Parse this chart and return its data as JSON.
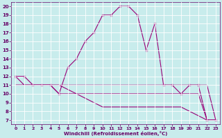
{
  "xlabel": "Windchill (Refroidissement éolien,°C)",
  "bg_color": "#c8ecec",
  "line_color": "#990077",
  "grid_color": "#ffffff",
  "xlim": [
    -0.5,
    23.5
  ],
  "ylim": [
    6.5,
    20.5
  ],
  "xticks": [
    0,
    1,
    2,
    3,
    4,
    5,
    6,
    7,
    8,
    9,
    10,
    11,
    12,
    13,
    14,
    15,
    16,
    17,
    18,
    19,
    20,
    21,
    22,
    23
  ],
  "yticks": [
    7,
    8,
    9,
    10,
    11,
    12,
    13,
    14,
    15,
    16,
    17,
    18,
    19,
    20
  ],
  "line1_x": [
    0,
    1,
    2,
    3,
    4,
    5,
    6,
    7,
    8,
    9,
    10,
    11,
    12,
    13,
    14,
    15,
    16,
    17,
    18,
    19,
    20,
    21,
    22,
    23
  ],
  "line1_y": [
    12,
    12,
    11,
    11,
    11,
    10,
    13,
    14,
    16,
    17,
    19,
    19,
    20,
    20,
    19,
    15,
    18,
    11,
    11,
    10,
    11,
    11,
    7,
    7
  ],
  "line2_x": [
    0,
    1,
    2,
    3,
    4,
    5,
    6,
    7,
    8,
    9,
    10,
    11,
    12,
    13,
    14,
    15,
    16,
    17,
    18,
    19,
    20,
    21,
    22,
    23
  ],
  "line2_y": [
    11,
    11,
    11,
    11,
    11,
    11,
    11,
    11,
    11,
    11,
    11,
    11,
    11,
    11,
    11,
    11,
    11,
    11,
    11,
    11,
    11,
    11,
    11,
    7
  ],
  "line3_x": [
    0,
    1,
    2,
    3,
    4,
    5,
    6,
    7,
    8,
    9,
    10,
    11,
    12,
    13,
    14,
    15,
    16,
    17,
    18,
    19,
    20,
    21,
    22,
    23
  ],
  "line3_y": [
    12,
    11,
    11,
    11,
    11,
    10,
    10,
    10,
    10,
    10,
    10,
    10,
    10,
    10,
    10,
    10,
    10,
    10,
    10,
    10,
    10,
    10,
    7,
    7
  ],
  "line4_x": [
    0,
    1,
    2,
    3,
    4,
    5,
    6,
    7,
    8,
    9,
    10,
    11,
    12,
    13,
    14,
    15,
    16,
    17,
    18,
    19,
    20,
    21,
    22,
    23
  ],
  "line4_y": [
    11,
    11,
    11,
    11,
    11,
    11,
    10.5,
    10.0,
    9.5,
    9.0,
    8.5,
    8.5,
    8.5,
    8.5,
    8.5,
    8.5,
    8.5,
    8.5,
    8.5,
    8.5,
    8.0,
    7.5,
    7,
    7
  ]
}
